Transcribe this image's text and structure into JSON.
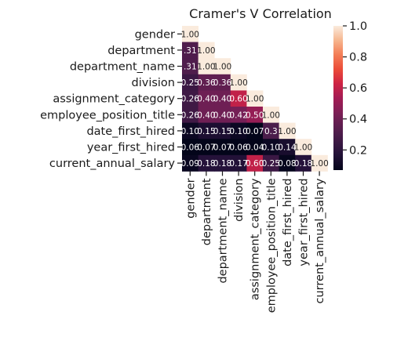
{
  "chart_data": {
    "type": "heatmap",
    "title": "Cramer's V Correlation",
    "variables": [
      "gender",
      "department",
      "department_name",
      "division",
      "assignment_category",
      "employee_position_title",
      "date_first_hired",
      "year_first_hired",
      "current_annual_salary"
    ],
    "matrix": [
      [
        1.0
      ],
      [
        0.31,
        1.0
      ],
      [
        0.31,
        1.0,
        1.0
      ],
      [
        0.25,
        0.36,
        0.36,
        1.0
      ],
      [
        0.26,
        0.4,
        0.4,
        0.6,
        1.0
      ],
      [
        0.26,
        0.4,
        0.4,
        0.42,
        0.5,
        1.0
      ],
      [
        0.1,
        0.15,
        0.15,
        0.1,
        0.07,
        0.3,
        1.0
      ],
      [
        0.06,
        0.07,
        0.07,
        0.06,
        0.04,
        0.1,
        0.14,
        1.0
      ],
      [
        0.09,
        0.18,
        0.18,
        0.17,
        0.6,
        0.25,
        0.08,
        0.18,
        1.0
      ]
    ],
    "annotation_labels": [
      [
        "1.00"
      ],
      [
        ".31",
        "1.00"
      ],
      [
        ".31",
        "1.00",
        "1.00"
      ],
      [
        "0.25",
        "0.36",
        "0.36",
        "1.00"
      ],
      [
        "0.26",
        "0.40",
        "0.40",
        "0.60",
        "1.00"
      ],
      [
        "0.26",
        "0.40",
        "0.40",
        "0.42",
        "0.50",
        "1.00"
      ],
      [
        "0.10",
        "0.15",
        "0.15",
        "0.10",
        "0.07",
        "0.3",
        "1.00"
      ],
      [
        "0.06",
        "0.07",
        "0.07",
        "0.06",
        "0.04",
        "0.10",
        "0.14",
        "1.00"
      ],
      [
        "0.09",
        "0.18",
        "0.18",
        "0.17",
        "0.60",
        "0.25",
        "0.08",
        "0.18",
        "1.00"
      ]
    ],
    "mask": "upper-triangle",
    "colormap": "rocket",
    "colorbar": {
      "range": [
        0.07,
        1.0
      ],
      "ticks": [
        "0.2",
        "0.4",
        "0.6",
        "0.8",
        "1.0"
      ],
      "placement": "right"
    },
    "colors": {
      "low": "#03051a",
      "high": "#faebdd"
    }
  }
}
